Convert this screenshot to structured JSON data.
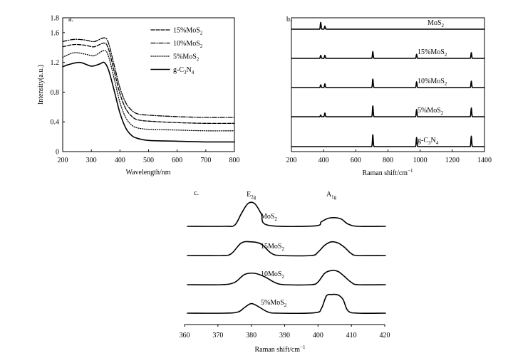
{
  "chart_data": [
    {
      "panel": "a.",
      "type": "line",
      "xlabel": "Wavelength/nm",
      "ylabel": "Intensity(a.u.)",
      "xlim": [
        200,
        800
      ],
      "ylim": [
        0,
        1.8
      ],
      "xticks": [
        200,
        300,
        400,
        500,
        600,
        700,
        800
      ],
      "yticks": [
        0,
        0.4,
        0.8,
        1.2,
        1.6,
        1.8
      ],
      "legend_position": "top-right",
      "series": [
        {
          "name": "15%MoS2",
          "label_base": "15%MoS",
          "label_sub": "2",
          "style": "dashed",
          "points": [
            [
              200,
              1.41
            ],
            [
              240,
              1.44
            ],
            [
              280,
              1.43
            ],
            [
              310,
              1.41
            ],
            [
              345,
              1.46
            ],
            [
              360,
              1.38
            ],
            [
              380,
              1.08
            ],
            [
              400,
              0.78
            ],
            [
              420,
              0.58
            ],
            [
              440,
              0.48
            ],
            [
              460,
              0.43
            ],
            [
              500,
              0.41
            ],
            [
              600,
              0.39
            ],
            [
              700,
              0.38
            ],
            [
              800,
              0.38
            ]
          ]
        },
        {
          "name": "10%MoS2",
          "label_base": "10%MoS",
          "label_sub": "2",
          "style": "dashdot",
          "points": [
            [
              200,
              1.48
            ],
            [
              240,
              1.51
            ],
            [
              280,
              1.5
            ],
            [
              310,
              1.48
            ],
            [
              345,
              1.53
            ],
            [
              360,
              1.46
            ],
            [
              380,
              1.16
            ],
            [
              400,
              0.86
            ],
            [
              420,
              0.66
            ],
            [
              440,
              0.56
            ],
            [
              460,
              0.51
            ],
            [
              500,
              0.49
            ],
            [
              600,
              0.47
            ],
            [
              700,
              0.46
            ],
            [
              800,
              0.46
            ]
          ]
        },
        {
          "name": "5%MoS2",
          "label_base": "5%MoS",
          "label_sub": "2",
          "style": "dotted",
          "points": [
            [
              200,
              1.27
            ],
            [
              240,
              1.33
            ],
            [
              280,
              1.31
            ],
            [
              310,
              1.29
            ],
            [
              345,
              1.36
            ],
            [
              360,
              1.28
            ],
            [
              380,
              0.98
            ],
            [
              400,
              0.66
            ],
            [
              420,
              0.46
            ],
            [
              440,
              0.36
            ],
            [
              460,
              0.32
            ],
            [
              500,
              0.3
            ],
            [
              600,
              0.29
            ],
            [
              700,
              0.28
            ],
            [
              800,
              0.28
            ]
          ]
        },
        {
          "name": "g-C3N4",
          "label_base": "g-C",
          "label_sub": "3",
          "label_mid": "N",
          "label_sub2": "4",
          "style": "solid",
          "points": [
            [
              200,
              1.14
            ],
            [
              220,
              1.17
            ],
            [
              260,
              1.2
            ],
            [
              300,
              1.15
            ],
            [
              330,
              1.18
            ],
            [
              345,
              1.2
            ],
            [
              360,
              1.1
            ],
            [
              380,
              0.82
            ],
            [
              400,
              0.52
            ],
            [
              420,
              0.32
            ],
            [
              440,
              0.22
            ],
            [
              460,
              0.18
            ],
            [
              500,
              0.15
            ],
            [
              600,
              0.14
            ],
            [
              700,
              0.13
            ],
            [
              800,
              0.13
            ]
          ]
        }
      ]
    },
    {
      "panel": "b.",
      "type": "line",
      "xlabel": "Raman shift/cm",
      "xlabel_sup": "−1",
      "xlim": [
        200,
        1400
      ],
      "xticks": [
        200,
        400,
        600,
        800,
        1000,
        1200,
        1400
      ],
      "series": [
        {
          "name": "MoS2",
          "label_base": "MoS",
          "label_sub": "2",
          "peaks": [
            {
              "x": 382,
              "h": 1.0
            },
            {
              "x": 408,
              "h": 0.45
            }
          ]
        },
        {
          "name": "15%MoS2",
          "label_base": "15%MoS",
          "label_sub": "2",
          "peaks": [
            {
              "x": 382,
              "h": 0.45
            },
            {
              "x": 408,
              "h": 0.45
            },
            {
              "x": 706,
              "h": 1.0
            },
            {
              "x": 978,
              "h": 0.6
            },
            {
              "x": 1318,
              "h": 0.85
            }
          ]
        },
        {
          "name": "10%MoS2",
          "label_base": "10%MoS",
          "label_sub": "2",
          "peaks": [
            {
              "x": 382,
              "h": 0.4
            },
            {
              "x": 408,
              "h": 0.55
            },
            {
              "x": 706,
              "h": 1.25
            },
            {
              "x": 978,
              "h": 0.85
            },
            {
              "x": 1318,
              "h": 0.95
            }
          ]
        },
        {
          "name": "5%MoS2",
          "label_base": "5%MoS",
          "label_sub": "2",
          "peaks": [
            {
              "x": 382,
              "h": 0.25
            },
            {
              "x": 408,
              "h": 0.55
            },
            {
              "x": 706,
              "h": 1.6
            },
            {
              "x": 978,
              "h": 1.05
            },
            {
              "x": 1318,
              "h": 1.3
            }
          ]
        },
        {
          "name": "g-C3N4",
          "label_base": "g-C",
          "label_sub": "3",
          "label_mid": "N",
          "label_sub2": "4",
          "peaks": [
            {
              "x": 706,
              "h": 1.75
            },
            {
              "x": 978,
              "h": 1.35
            },
            {
              "x": 1318,
              "h": 1.55
            }
          ]
        }
      ]
    },
    {
      "panel": "c.",
      "type": "line",
      "xlabel": "Raman shift/cm",
      "xlabel_sup": "−1",
      "xlim": [
        360,
        420
      ],
      "xticks": [
        360,
        370,
        380,
        390,
        400,
        410,
        420
      ],
      "peak_labels": [
        {
          "x": 380,
          "base": "E",
          "sub": "2g"
        },
        {
          "x": 404,
          "base": "A",
          "sub": "1g"
        }
      ],
      "series": [
        {
          "name": "MoS2",
          "label_base": "MoS",
          "label_sub": "2",
          "points": [
            [
              372,
              0
            ],
            [
              375,
              0.05
            ],
            [
              377,
              0.55
            ],
            [
              379,
              1.0
            ],
            [
              381,
              1.0
            ],
            [
              383,
              0.55
            ],
            [
              385,
              0.05
            ],
            [
              399,
              0.02
            ],
            [
              401,
              0.2
            ],
            [
              403,
              0.35
            ],
            [
              405,
              0.38
            ],
            [
              407,
              0.32
            ],
            [
              409,
              0.1
            ],
            [
              412,
              0
            ]
          ]
        },
        {
          "name": "15MoS2",
          "label_base": "15MoS",
          "label_sub": "2",
          "points": [
            [
              371,
              0
            ],
            [
              374,
              0.08
            ],
            [
              377,
              0.55
            ],
            [
              380,
              0.6
            ],
            [
              383,
              0.5
            ],
            [
              386,
              0.1
            ],
            [
              389,
              0
            ],
            [
              398,
              0
            ],
            [
              400,
              0.15
            ],
            [
              402,
              0.45
            ],
            [
              404,
              0.6
            ],
            [
              406,
              0.55
            ],
            [
              408,
              0.35
            ],
            [
              410,
              0.08
            ],
            [
              412,
              0
            ]
          ]
        },
        {
          "name": "10MoS2",
          "label_base": "10MoS",
          "label_sub": "2",
          "points": [
            [
              371,
              0
            ],
            [
              375,
              0.1
            ],
            [
              378,
              0.45
            ],
            [
              381,
              0.5
            ],
            [
              384,
              0.35
            ],
            [
              387,
              0.1
            ],
            [
              390,
              0
            ],
            [
              398,
              0
            ],
            [
              400,
              0.12
            ],
            [
              402,
              0.5
            ],
            [
              404,
              0.62
            ],
            [
              406,
              0.58
            ],
            [
              408,
              0.35
            ],
            [
              410,
              0.1
            ],
            [
              412,
              0
            ]
          ]
        },
        {
          "name": "5%MoS2",
          "label_base": "5%MoS",
          "label_sub": "2",
          "points": [
            [
              372,
              0
            ],
            [
              376,
              0.05
            ],
            [
              378,
              0.25
            ],
            [
              380,
              0.42
            ],
            [
              382,
              0.3
            ],
            [
              385,
              0.05
            ],
            [
              388,
              0
            ],
            [
              399,
              0.02
            ],
            [
              401,
              0.2
            ],
            [
              402.5,
              0.75
            ],
            [
              404,
              0.82
            ],
            [
              406,
              0.8
            ],
            [
              407.5,
              0.6
            ],
            [
              409,
              0.1
            ],
            [
              412,
              0
            ]
          ]
        }
      ]
    }
  ]
}
